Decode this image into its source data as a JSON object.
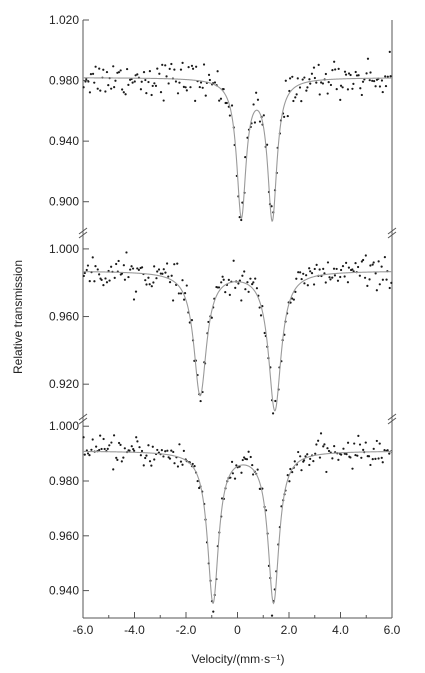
{
  "chart_data": {
    "type": "scatter",
    "xlabel": "Velocity/(mm·s⁻¹)",
    "ylabel": "Relative transmission",
    "xlim": [
      -6.0,
      6.0
    ],
    "x_ticks": [
      "-6.0",
      "-4.0",
      "-2.0",
      "0",
      "2.0",
      "4.0",
      "6.0"
    ],
    "x_tick_values": [
      -6,
      -4,
      -2,
      0,
      2,
      4,
      6
    ],
    "shared_x_axis": true,
    "grid": false,
    "legend": "none",
    "point_color": "#1a1a1a",
    "fit_color": "#9a9a9a",
    "panels": [
      {
        "ylim": [
          0.88,
          1.02
        ],
        "y_ticks": [
          "1.020",
          "0.980",
          "0.940",
          "0.900"
        ],
        "y_tick_values": [
          1.02,
          0.98,
          0.94,
          0.9
        ],
        "fit": {
          "baseline": 0.982,
          "peaks": [
            {
              "center": 0.15,
              "depth": 0.09,
              "hwhm": 0.22
            },
            {
              "center": 1.35,
              "depth": 0.092,
              "hwhm": 0.22
            }
          ]
        },
        "points": {
          "noise": 0.006,
          "x_min": -6.0,
          "x_max": 6.0
        }
      },
      {
        "ylim": [
          0.9,
          1.01
        ],
        "y_ticks": [
          "1.000",
          "0.960",
          "0.920"
        ],
        "y_tick_values": [
          1.0,
          0.96,
          0.92
        ],
        "fit": {
          "baseline": 0.987,
          "peaks": [
            {
              "center": -1.45,
              "depth": 0.073,
              "hwhm": 0.3
            },
            {
              "center": 1.45,
              "depth": 0.082,
              "hwhm": 0.3
            }
          ]
        },
        "points": {
          "noise": 0.0045,
          "x_min": -6.0,
          "x_max": 6.0
        }
      },
      {
        "ylim": [
          0.93,
          1.003
        ],
        "y_ticks": [
          "1.000",
          "0.980",
          "0.960",
          "0.940"
        ],
        "y_tick_values": [
          1.0,
          0.98,
          0.96,
          0.94
        ],
        "fit": {
          "baseline": 0.991,
          "peaks": [
            {
              "center": -0.95,
              "depth": 0.055,
              "hwhm": 0.26
            },
            {
              "center": 1.4,
              "depth": 0.055,
              "hwhm": 0.26
            }
          ]
        },
        "points": {
          "noise": 0.0025,
          "x_min": -6.0,
          "x_max": 6.0
        }
      }
    ]
  }
}
